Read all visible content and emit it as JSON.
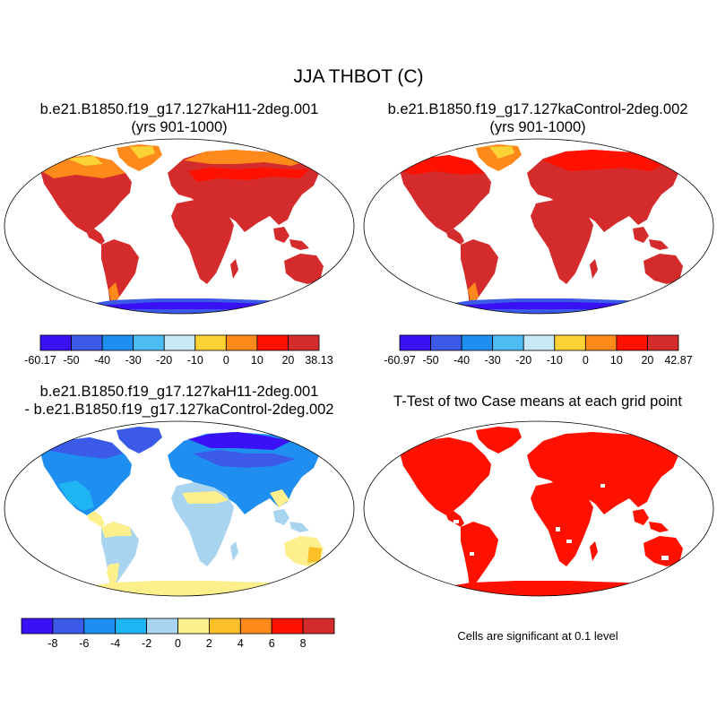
{
  "title": "JJA THBOT (C)",
  "panels": [
    {
      "id": "case1",
      "title_line1": "b.e21.B1850.f19_g17.127kaH11-2deg.001",
      "title_line2": "(yrs 901-1000)",
      "colorbar": {
        "colors": [
          "#3a10f4",
          "#3b5ae8",
          "#1f8ef1",
          "#4dbcf3",
          "#c9e8f5",
          "#fdd234",
          "#fd8a1a",
          "#ff1100",
          "#d42c2c"
        ],
        "tick_labels": [
          "-60.17",
          "-50",
          "-40",
          "-30",
          "-20",
          "-10",
          "0",
          "10",
          "20",
          "38.13"
        ]
      }
    },
    {
      "id": "case2",
      "title_line1": "b.e21.B1850.f19_g17.127kaControl-2deg.002",
      "title_line2": "(yrs 901-1000)",
      "colorbar": {
        "colors": [
          "#3a10f4",
          "#3b5ae8",
          "#1f8ef1",
          "#4dbcf3",
          "#c9e8f5",
          "#fdd234",
          "#fd8a1a",
          "#ff1100",
          "#d42c2c"
        ],
        "tick_labels": [
          "-60.97",
          "-50",
          "-40",
          "-30",
          "-20",
          "-10",
          "0",
          "10",
          "20",
          "42.87"
        ]
      }
    },
    {
      "id": "diff",
      "title_line1": "b.e21.B1850.f19_g17.127kaH11-2deg.001",
      "title_line2": "- b.e21.B1850.f19_g17.127kaControl-2deg.002",
      "colorbar": {
        "colors": [
          "#3a10f4",
          "#3b5ae8",
          "#1f8ef1",
          "#1fb5f3",
          "#a9d4ef",
          "#fdf08c",
          "#fdc029",
          "#fd8a1a",
          "#ff1100",
          "#d42c2c"
        ],
        "tick_labels": [
          "-8",
          "-6",
          "-4",
          "-2",
          "0",
          "2",
          "4",
          "6",
          "8"
        ]
      }
    },
    {
      "id": "ttest",
      "title_line1": "T-Test of two Case means at each grid point",
      "note": "Cells are significant at 0.1 level"
    }
  ]
}
